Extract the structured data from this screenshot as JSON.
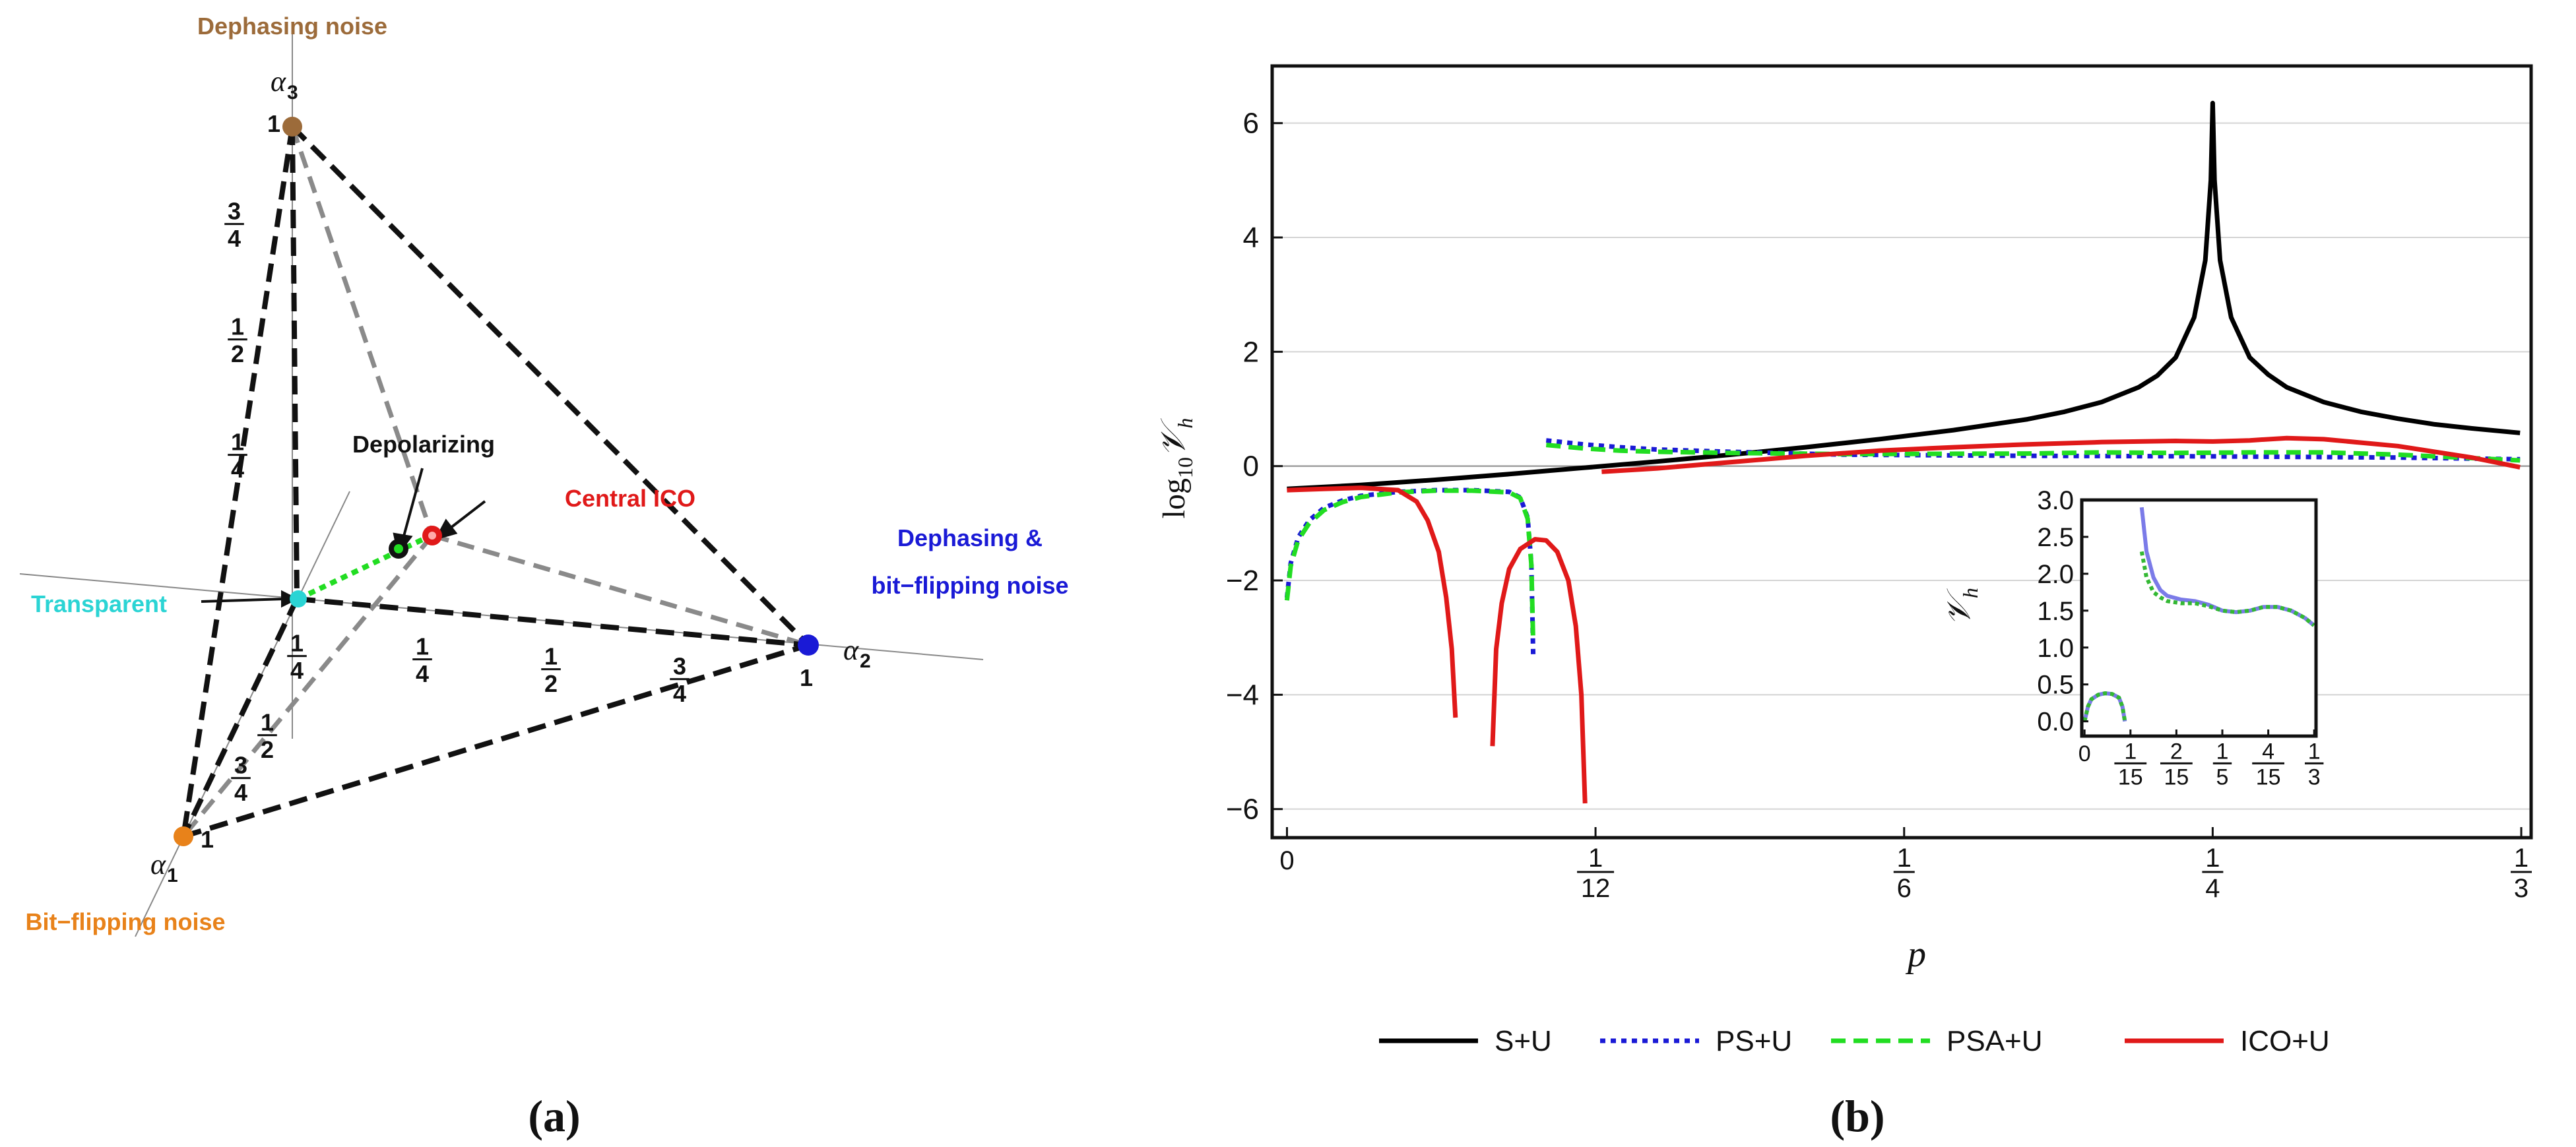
{
  "chart_data": [
    {
      "type": "diagram",
      "panel": "(a)",
      "description_labels": {
        "vertex_alpha3": "Dephasing noise",
        "vertex_alpha1": "Bit−flipping noise",
        "vertex_alpha2_line1": "Dephasing &",
        "vertex_alpha2_line2": "bit−flipping noise",
        "center": "Transparent",
        "depolarizing": "Depolarizing",
        "central_ico": "Central ICO"
      },
      "axis_names": {
        "a1": "α",
        "a1_sub": "1",
        "a2": "α",
        "a2_sub": "2",
        "a3": "α",
        "a3_sub": "3"
      },
      "vertex_value": "1",
      "tick_fractions": [
        {
          "num": "1",
          "den": "4"
        },
        {
          "num": "1",
          "den": "2"
        },
        {
          "num": "3",
          "den": "4"
        }
      ],
      "colors": {
        "dephasing": "#9c6b3a",
        "bitflip": "#e8821a",
        "dephasing_bitflip": "#1a1ad6",
        "transparent": "#2bd4d4",
        "central_ico": "#e01919",
        "depolarizing": "#1a1a1a",
        "path": "#22dd22"
      }
    },
    {
      "type": "line",
      "panel": "(b)",
      "title": "",
      "xlabel": "p",
      "ylabel_base": "log",
      "ylabel_sub": "10",
      "ylabel_var": "𝒱",
      "ylabel_var_sub": "h",
      "xlim": [
        -0.004,
        0.336
      ],
      "ylim": [
        -6.5,
        7.0
      ],
      "xticks": [
        {
          "value": 0,
          "num": "0",
          "den": ""
        },
        {
          "value": 0.08333,
          "num": "1",
          "den": "12"
        },
        {
          "value": 0.16667,
          "num": "1",
          "den": "6"
        },
        {
          "value": 0.25,
          "num": "1",
          "den": "4"
        },
        {
          "value": 0.33333,
          "num": "1",
          "den": "3"
        }
      ],
      "yticks": [
        -6,
        -4,
        -2,
        0,
        2,
        4,
        6
      ],
      "ytick_labels": [
        "−6",
        "−4",
        "−2",
        "0",
        "2",
        "4",
        "6"
      ],
      "grid": "horizontal",
      "legend_position": "bottom",
      "series": [
        {
          "name": "S+U",
          "color": "#000000",
          "dash": "solid",
          "segments": [
            [
              [
                0,
                -0.4
              ],
              [
                0.02,
                -0.33
              ],
              [
                0.04,
                -0.24
              ],
              [
                0.06,
                -0.14
              ],
              [
                0.08,
                -0.03
              ],
              [
                0.1,
                0.08
              ],
              [
                0.12,
                0.2
              ],
              [
                0.14,
                0.33
              ],
              [
                0.16,
                0.47
              ],
              [
                0.18,
                0.63
              ],
              [
                0.2,
                0.82
              ],
              [
                0.21,
                0.95
              ],
              [
                0.22,
                1.12
              ],
              [
                0.23,
                1.38
              ],
              [
                0.235,
                1.58
              ],
              [
                0.24,
                1.9
              ],
              [
                0.245,
                2.6
              ],
              [
                0.248,
                3.6
              ],
              [
                0.2495,
                5.0
              ],
              [
                0.25,
                6.35
              ],
              [
                0.2505,
                5.0
              ],
              [
                0.252,
                3.6
              ],
              [
                0.255,
                2.6
              ],
              [
                0.26,
                1.9
              ],
              [
                0.265,
                1.6
              ],
              [
                0.27,
                1.38
              ],
              [
                0.28,
                1.12
              ],
              [
                0.29,
                0.95
              ],
              [
                0.3,
                0.83
              ],
              [
                0.31,
                0.73
              ],
              [
                0.32,
                0.66
              ],
              [
                0.333,
                0.58
              ]
            ]
          ]
        },
        {
          "name": "PS+U",
          "color": "#1a1ad6",
          "dash": "dotted",
          "segments": [
            [
              [
                0,
                -2.3
              ],
              [
                0.001,
                -1.7
              ],
              [
                0.003,
                -1.25
              ],
              [
                0.006,
                -0.95
              ],
              [
                0.01,
                -0.73
              ],
              [
                0.015,
                -0.6
              ],
              [
                0.02,
                -0.52
              ],
              [
                0.03,
                -0.45
              ],
              [
                0.04,
                -0.42
              ],
              [
                0.05,
                -0.42
              ],
              [
                0.06,
                -0.45
              ],
              [
                0.063,
                -0.55
              ],
              [
                0.065,
                -0.9
              ],
              [
                0.066,
                -1.7
              ],
              [
                0.0665,
                -3.3
              ]
            ],
            [
              [
                0.07,
                0.45
              ],
              [
                0.08,
                0.38
              ],
              [
                0.09,
                0.33
              ],
              [
                0.1,
                0.29
              ],
              [
                0.12,
                0.25
              ],
              [
                0.15,
                0.2
              ],
              [
                0.2,
                0.18
              ],
              [
                0.25,
                0.17
              ],
              [
                0.3,
                0.15
              ],
              [
                0.333,
                0.12
              ]
            ]
          ]
        },
        {
          "name": "PSA+U",
          "color": "#22dd22",
          "dash": "dashed",
          "segments": [
            [
              [
                0,
                -2.35
              ],
              [
                0.001,
                -1.75
              ],
              [
                0.003,
                -1.3
              ],
              [
                0.006,
                -1.0
              ],
              [
                0.01,
                -0.77
              ],
              [
                0.015,
                -0.63
              ],
              [
                0.02,
                -0.54
              ],
              [
                0.03,
                -0.46
              ],
              [
                0.04,
                -0.43
              ],
              [
                0.05,
                -0.43
              ],
              [
                0.06,
                -0.46
              ],
              [
                0.063,
                -0.56
              ],
              [
                0.065,
                -0.92
              ],
              [
                0.066,
                -1.72
              ],
              [
                0.0665,
                -3.1
              ]
            ],
            [
              [
                0.07,
                0.37
              ],
              [
                0.08,
                0.31
              ],
              [
                0.09,
                0.27
              ],
              [
                0.1,
                0.25
              ],
              [
                0.12,
                0.23
              ],
              [
                0.15,
                0.21
              ],
              [
                0.2,
                0.22
              ],
              [
                0.22,
                0.24
              ],
              [
                0.24,
                0.23
              ],
              [
                0.26,
                0.24
              ],
              [
                0.28,
                0.24
              ],
              [
                0.3,
                0.2
              ],
              [
                0.333,
                0.1
              ]
            ]
          ]
        },
        {
          "name": "ICO+U",
          "color": "#e01919",
          "dash": "solid",
          "segments": [
            [
              [
                0,
                -0.42
              ],
              [
                0.01,
                -0.4
              ],
              [
                0.02,
                -0.38
              ],
              [
                0.03,
                -0.42
              ],
              [
                0.035,
                -0.62
              ],
              [
                0.038,
                -0.95
              ],
              [
                0.041,
                -1.5
              ],
              [
                0.043,
                -2.3
              ],
              [
                0.0445,
                -3.2
              ],
              [
                0.0455,
                -4.4
              ]
            ],
            [
              [
                0.0555,
                -4.9
              ],
              [
                0.0565,
                -3.2
              ],
              [
                0.058,
                -2.4
              ],
              [
                0.06,
                -1.8
              ],
              [
                0.063,
                -1.45
              ],
              [
                0.067,
                -1.28
              ],
              [
                0.07,
                -1.3
              ],
              [
                0.073,
                -1.5
              ],
              [
                0.076,
                -2.0
              ],
              [
                0.078,
                -2.8
              ],
              [
                0.0795,
                -4.0
              ],
              [
                0.0805,
                -5.9
              ]
            ],
            [
              [
                0.085,
                -0.1
              ],
              [
                0.1,
                -0.04
              ],
              [
                0.12,
                0.07
              ],
              [
                0.14,
                0.18
              ],
              [
                0.16,
                0.27
              ],
              [
                0.18,
                0.33
              ],
              [
                0.2,
                0.38
              ],
              [
                0.22,
                0.42
              ],
              [
                0.24,
                0.44
              ],
              [
                0.25,
                0.43
              ],
              [
                0.26,
                0.45
              ],
              [
                0.27,
                0.49
              ],
              [
                0.28,
                0.47
              ],
              [
                0.3,
                0.35
              ],
              [
                0.32,
                0.15
              ],
              [
                0.333,
                -0.02
              ]
            ]
          ]
        }
      ],
      "legend": [
        "S+U",
        "PS+U",
        "PSA+U",
        "ICO+U"
      ]
    },
    {
      "type": "line",
      "panel": "(b)-inset",
      "ylabel_var": "𝒱",
      "ylabel_var_sub": "h",
      "xlim": [
        -0.004,
        0.336
      ],
      "ylim": [
        -0.2,
        3.0
      ],
      "yticks": [
        0.0,
        0.5,
        1.0,
        1.5,
        2.0,
        2.5,
        3.0
      ],
      "ytick_labels": [
        "0.0",
        "0.5",
        "1.0",
        "1.5",
        "2.0",
        "2.5",
        "3.0"
      ],
      "xticks": [
        {
          "value": 0,
          "num": "0",
          "den": ""
        },
        {
          "value": 0.06667,
          "num": "1",
          "den": "15"
        },
        {
          "value": 0.13333,
          "num": "2",
          "den": "15"
        },
        {
          "value": 0.2,
          "num": "1",
          "den": "5"
        },
        {
          "value": 0.26667,
          "num": "4",
          "den": "15"
        },
        {
          "value": 0.33333,
          "num": "1",
          "den": "3"
        }
      ],
      "series": [
        {
          "name": "PS+U",
          "color": "#7b7be8",
          "dash": "solid",
          "segments": [
            [
              [
                0,
                0.0
              ],
              [
                0.005,
                0.2
              ],
              [
                0.01,
                0.3
              ],
              [
                0.02,
                0.36
              ],
              [
                0.03,
                0.38
              ],
              [
                0.04,
                0.37
              ],
              [
                0.05,
                0.32
              ],
              [
                0.055,
                0.2
              ],
              [
                0.0585,
                0.0
              ]
            ],
            [
              [
                0.083,
                2.9
              ],
              [
                0.09,
                2.3
              ],
              [
                0.1,
                1.95
              ],
              [
                0.11,
                1.78
              ],
              [
                0.12,
                1.7
              ],
              [
                0.14,
                1.65
              ],
              [
                0.16,
                1.63
              ],
              [
                0.18,
                1.58
              ],
              [
                0.2,
                1.5
              ],
              [
                0.22,
                1.48
              ],
              [
                0.24,
                1.5
              ],
              [
                0.26,
                1.55
              ],
              [
                0.28,
                1.55
              ],
              [
                0.3,
                1.5
              ],
              [
                0.32,
                1.4
              ],
              [
                0.333,
                1.3
              ]
            ]
          ]
        },
        {
          "name": "PSA+U",
          "color": "#33b833",
          "dash": "dotted",
          "segments": [
            [
              [
                0,
                0.0
              ],
              [
                0.005,
                0.2
              ],
              [
                0.01,
                0.3
              ],
              [
                0.02,
                0.36
              ],
              [
                0.03,
                0.38
              ],
              [
                0.04,
                0.37
              ],
              [
                0.05,
                0.32
              ],
              [
                0.055,
                0.2
              ],
              [
                0.0585,
                0.0
              ]
            ],
            [
              [
                0.083,
                2.3
              ],
              [
                0.09,
                1.95
              ],
              [
                0.1,
                1.75
              ],
              [
                0.11,
                1.68
              ],
              [
                0.12,
                1.63
              ],
              [
                0.14,
                1.6
              ],
              [
                0.16,
                1.6
              ],
              [
                0.18,
                1.56
              ],
              [
                0.2,
                1.5
              ],
              [
                0.22,
                1.48
              ],
              [
                0.24,
                1.5
              ],
              [
                0.26,
                1.55
              ],
              [
                0.28,
                1.55
              ],
              [
                0.3,
                1.5
              ],
              [
                0.32,
                1.4
              ],
              [
                0.333,
                1.3
              ]
            ]
          ]
        }
      ]
    }
  ],
  "captions": {
    "a": "(a)",
    "b": "(b)"
  }
}
